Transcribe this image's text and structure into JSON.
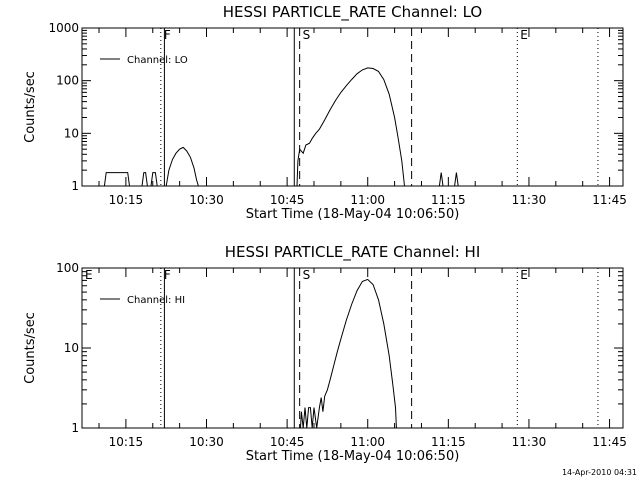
{
  "chart_data": [
    {
      "type": "line",
      "title": "HESSI PARTICLE_RATE Channel: LO",
      "xlabel": "Start Time (18-May-04 10:06:50)",
      "ylabel": "Counts/sec",
      "yscale": "log",
      "xlim": [
        "10:06:50",
        "11:47:30"
      ],
      "ylim": [
        1,
        1000
      ],
      "x_ticks": [
        "10:15",
        "10:30",
        "10:45",
        "11:00",
        "11:15",
        "11:30",
        "11:45"
      ],
      "y_ticks": [
        "1",
        "10",
        "100",
        "1000"
      ],
      "legend": {
        "position": "upper-left",
        "entries": [
          "Channel: LO"
        ]
      },
      "markers": [
        {
          "label": "",
          "time": "10:06:50",
          "style": "solid"
        },
        {
          "label": "F",
          "time": "10:21:30",
          "style": "dotted"
        },
        {
          "label": "",
          "time": "10:22:10",
          "style": "solid"
        },
        {
          "label": "",
          "time": "10:46:20",
          "style": "solid"
        },
        {
          "label": "S",
          "time": "10:47:20",
          "style": "dashed"
        },
        {
          "label": "",
          "time": "11:08:10",
          "style": "dashed"
        },
        {
          "label": "E",
          "time": "11:27:50",
          "style": "dotted"
        },
        {
          "label": "",
          "time": "11:42:50",
          "style": "dotted"
        }
      ],
      "series": [
        {
          "name": "Channel: LO",
          "points": [
            [
              "10:11:00",
              1
            ],
            [
              "10:11:20",
              1.8
            ],
            [
              "10:11:40",
              1.8
            ],
            [
              "10:12:30",
              1.8
            ],
            [
              "10:13:30",
              1.8
            ],
            [
              "10:14:20",
              1.8
            ],
            [
              "10:15:20",
              1.8
            ],
            [
              "10:15:40",
              1
            ],
            [
              "10:18:00",
              1
            ],
            [
              "10:18:20",
              1.8
            ],
            [
              "10:18:40",
              1.8
            ],
            [
              "10:19:00",
              1
            ],
            [
              "10:19:40",
              1
            ],
            [
              "10:20:00",
              1.8
            ],
            [
              "10:20:30",
              1.8
            ],
            [
              "10:20:50",
              1
            ],
            [
              "10:22:30",
              1
            ],
            [
              "10:23:00",
              2
            ],
            [
              "10:23:40",
              3.2
            ],
            [
              "10:24:20",
              4.2
            ],
            [
              "10:25:00",
              5
            ],
            [
              "10:25:40",
              5.4
            ],
            [
              "10:26:20",
              4.6
            ],
            [
              "10:27:00",
              3.5
            ],
            [
              "10:27:40",
              2.2
            ],
            [
              "10:28:10",
              1.3
            ],
            [
              "10:28:30",
              1
            ],
            [
              "10:46:50",
              1
            ],
            [
              "10:47:00",
              3
            ],
            [
              "10:47:20",
              5
            ],
            [
              "10:48:00",
              4.2
            ],
            [
              "10:48:30",
              6
            ],
            [
              "10:49:10",
              6.5
            ],
            [
              "10:49:40",
              8
            ],
            [
              "10:50:20",
              10
            ],
            [
              "10:51:00",
              12
            ],
            [
              "10:52:00",
              18
            ],
            [
              "10:53:00",
              28
            ],
            [
              "10:54:00",
              42
            ],
            [
              "10:55:00",
              60
            ],
            [
              "10:56:00",
              80
            ],
            [
              "10:57:00",
              105
            ],
            [
              "10:58:00",
              135
            ],
            [
              "10:59:00",
              160
            ],
            [
              "11:00:00",
              175
            ],
            [
              "11:01:00",
              170
            ],
            [
              "11:02:00",
              150
            ],
            [
              "11:03:00",
              105
            ],
            [
              "11:04:00",
              55
            ],
            [
              "11:05:00",
              20
            ],
            [
              "11:05:40",
              8
            ],
            [
              "11:06:20",
              3
            ],
            [
              "11:06:50",
              1
            ],
            [
              "11:13:20",
              1
            ],
            [
              "11:13:40",
              1.8
            ],
            [
              "11:14:00",
              1
            ],
            [
              "11:16:10",
              1
            ],
            [
              "11:16:30",
              1.8
            ],
            [
              "11:16:50",
              1
            ]
          ]
        }
      ]
    },
    {
      "type": "line",
      "title": "HESSI PARTICLE_RATE Channel: HI",
      "xlabel": "Start Time (18-May-04 10:06:50)",
      "ylabel": "Counts/sec",
      "yscale": "log",
      "xlim": [
        "10:06:50",
        "11:47:30"
      ],
      "ylim": [
        1,
        100
      ],
      "x_ticks": [
        "10:15",
        "10:30",
        "10:45",
        "11:00",
        "11:15",
        "11:30",
        "11:45"
      ],
      "y_ticks": [
        "1",
        "10",
        "100"
      ],
      "legend": {
        "position": "upper-left",
        "entries": [
          "Channel: HI"
        ]
      },
      "markers": [
        {
          "label": "E",
          "time": "10:06:50",
          "style": "solid"
        },
        {
          "label": "F",
          "time": "10:21:30",
          "style": "dotted"
        },
        {
          "label": "",
          "time": "10:22:10",
          "style": "solid"
        },
        {
          "label": "",
          "time": "10:46:20",
          "style": "solid"
        },
        {
          "label": "S",
          "time": "10:47:20",
          "style": "dashed"
        },
        {
          "label": "",
          "time": "11:08:10",
          "style": "dashed"
        },
        {
          "label": "E",
          "time": "11:27:50",
          "style": "dotted"
        },
        {
          "label": "",
          "time": "11:42:50",
          "style": "dotted"
        }
      ],
      "series": [
        {
          "name": "Channel: HI",
          "points": [
            [
              "10:47:30",
              1
            ],
            [
              "10:47:40",
              1.6
            ],
            [
              "10:48:00",
              1
            ],
            [
              "10:48:20",
              1.8
            ],
            [
              "10:48:40",
              1
            ],
            [
              "10:49:00",
              1.8
            ],
            [
              "10:49:20",
              1.8
            ],
            [
              "10:49:40",
              1
            ],
            [
              "10:50:00",
              1.8
            ],
            [
              "10:50:30",
              1
            ],
            [
              "10:51:00",
              1.8
            ],
            [
              "10:51:20",
              2.4
            ],
            [
              "10:51:40",
              1.6
            ],
            [
              "10:52:00",
              2.5
            ],
            [
              "10:52:30",
              3
            ],
            [
              "10:53:00",
              4
            ],
            [
              "10:53:40",
              6
            ],
            [
              "10:54:20",
              9
            ],
            [
              "10:55:00",
              13
            ],
            [
              "10:56:00",
              22
            ],
            [
              "10:57:00",
              35
            ],
            [
              "10:58:00",
              52
            ],
            [
              "10:59:00",
              68
            ],
            [
              "11:00:00",
              72
            ],
            [
              "11:01:00",
              62
            ],
            [
              "11:02:00",
              40
            ],
            [
              "11:03:00",
              20
            ],
            [
              "11:04:00",
              8
            ],
            [
              "11:04:40",
              3.5
            ],
            [
              "11:05:10",
              1.8
            ],
            [
              "11:05:20",
              1
            ]
          ]
        }
      ]
    }
  ],
  "footer": {
    "timestamp": "14-Apr-2010 04:31"
  }
}
